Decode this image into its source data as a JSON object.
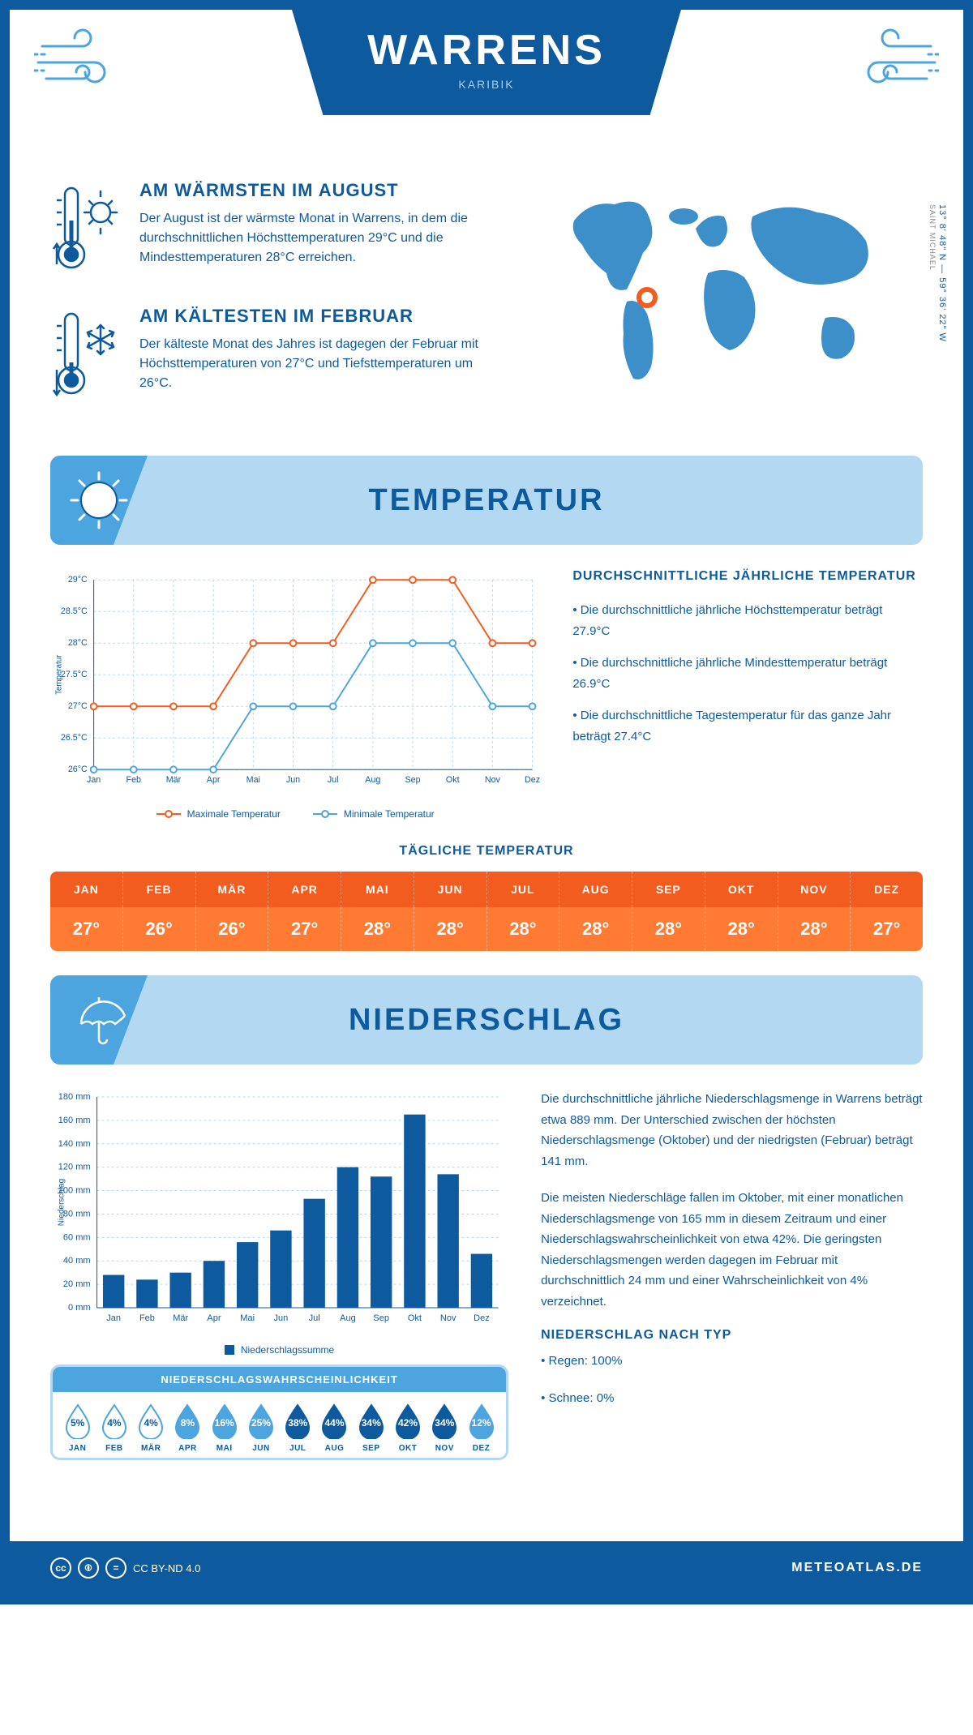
{
  "header": {
    "title": "WARRENS",
    "subtitle": "KARIBIK"
  },
  "coords": {
    "lat": "13° 8' 48\" N",
    "lon": "59° 36' 22\" W",
    "region": "SAINT MICHAEL"
  },
  "warm": {
    "title": "AM WÄRMSTEN IM AUGUST",
    "text": "Der August ist der wärmste Monat in Warrens, in dem die durchschnittlichen Höchsttemperaturen 29°C und die Mindesttemperaturen 28°C erreichen."
  },
  "cold": {
    "title": "AM KÄLTESTEN IM FEBRUAR",
    "text": "Der kälteste Monat des Jahres ist dagegen der Februar mit Höchsttemperaturen von 27°C und Tiefsttemperaturen um 26°C."
  },
  "temperature": {
    "section_title": "TEMPERATUR",
    "chart": {
      "type": "line",
      "months": [
        "Jan",
        "Feb",
        "Mär",
        "Apr",
        "Mai",
        "Jun",
        "Jul",
        "Aug",
        "Sep",
        "Okt",
        "Nov",
        "Dez"
      ],
      "max": [
        27,
        27,
        27,
        27,
        28,
        28,
        28,
        29,
        29,
        29,
        28,
        28
      ],
      "min": [
        26,
        26,
        26,
        26,
        27,
        27,
        27,
        28,
        28,
        28,
        27,
        27
      ],
      "ylim": [
        26,
        29
      ],
      "ytick_step": 0.5,
      "ylabel": "Temperatur",
      "max_color": "#f25c1f",
      "min_color": "#4ca5de",
      "grid_color": "#b3d9f2",
      "bg": "#ffffff",
      "legend": {
        "max": "Maximale Temperatur",
        "min": "Minimale Temperatur"
      }
    },
    "info": {
      "title": "DURCHSCHNITTLICHE JÄHRLICHE TEMPERATUR",
      "b1": "• Die durchschnittliche jährliche Höchsttemperatur beträgt 27.9°C",
      "b2": "• Die durchschnittliche jährliche Mindesttemperatur beträgt 26.9°C",
      "b3": "• Die durchschnittliche Tagestemperatur für das ganze Jahr beträgt 27.4°C"
    },
    "daily": {
      "title": "TÄGLICHE TEMPERATUR",
      "months": [
        "JAN",
        "FEB",
        "MÄR",
        "APR",
        "MAI",
        "JUN",
        "JUL",
        "AUG",
        "SEP",
        "OKT",
        "NOV",
        "DEZ"
      ],
      "values": [
        "27°",
        "26°",
        "26°",
        "27°",
        "28°",
        "28°",
        "28°",
        "28°",
        "28°",
        "28°",
        "28°",
        "27°"
      ],
      "head_bg": "#f25c1f",
      "body_bg": "#ff7a33"
    }
  },
  "precipitation": {
    "section_title": "NIEDERSCHLAG",
    "chart": {
      "type": "bar",
      "months": [
        "Jan",
        "Feb",
        "Mär",
        "Apr",
        "Mai",
        "Jun",
        "Jul",
        "Aug",
        "Sep",
        "Okt",
        "Nov",
        "Dez"
      ],
      "values": [
        28,
        24,
        30,
        40,
        56,
        66,
        93,
        120,
        112,
        165,
        114,
        46
      ],
      "ylim": [
        0,
        180
      ],
      "ytick_step": 20,
      "ylabel": "Niederschlag",
      "bar_color": "#0d5a9e",
      "grid_color": "#b3d9f2",
      "legend": "Niederschlagssumme"
    },
    "text1": "Die durchschnittliche jährliche Niederschlagsmenge in Warrens beträgt etwa 889 mm. Der Unterschied zwischen der höchsten Niederschlagsmenge (Oktober) und der niedrigsten (Februar) beträgt 141 mm.",
    "text2": "Die meisten Niederschläge fallen im Oktober, mit einer monatlichen Niederschlagsmenge von 165 mm in diesem Zeitraum und einer Niederschlagswahrscheinlichkeit von etwa 42%. Die geringsten Niederschlagsmengen werden dagegen im Februar mit durchschnittlich 24 mm und einer Wahrscheinlichkeit von 4% verzeichnet.",
    "by_type": {
      "title": "NIEDERSCHLAG NACH TYP",
      "b1": "• Regen: 100%",
      "b2": "• Schnee: 0%"
    },
    "probability": {
      "title": "NIEDERSCHLAGSWAHRSCHEINLICHKEIT",
      "months": [
        "JAN",
        "FEB",
        "MÄR",
        "APR",
        "MAI",
        "JUN",
        "JUL",
        "AUG",
        "SEP",
        "OKT",
        "NOV",
        "DEZ"
      ],
      "values": [
        5,
        4,
        4,
        8,
        16,
        25,
        38,
        44,
        34,
        42,
        34,
        12
      ],
      "colors": {
        "low": {
          "fill": "#ffffff",
          "stroke": "#4ca5de",
          "text": "#0d5a9e"
        },
        "mid": {
          "fill": "#4ca5de",
          "stroke": "#4ca5de",
          "text": "#ffffff"
        },
        "high": {
          "fill": "#0d5a9e",
          "stroke": "#0d5a9e",
          "text": "#ffffff"
        }
      }
    }
  },
  "footer": {
    "license": "CC BY-ND 4.0",
    "site": "METEOATLAS.DE"
  }
}
